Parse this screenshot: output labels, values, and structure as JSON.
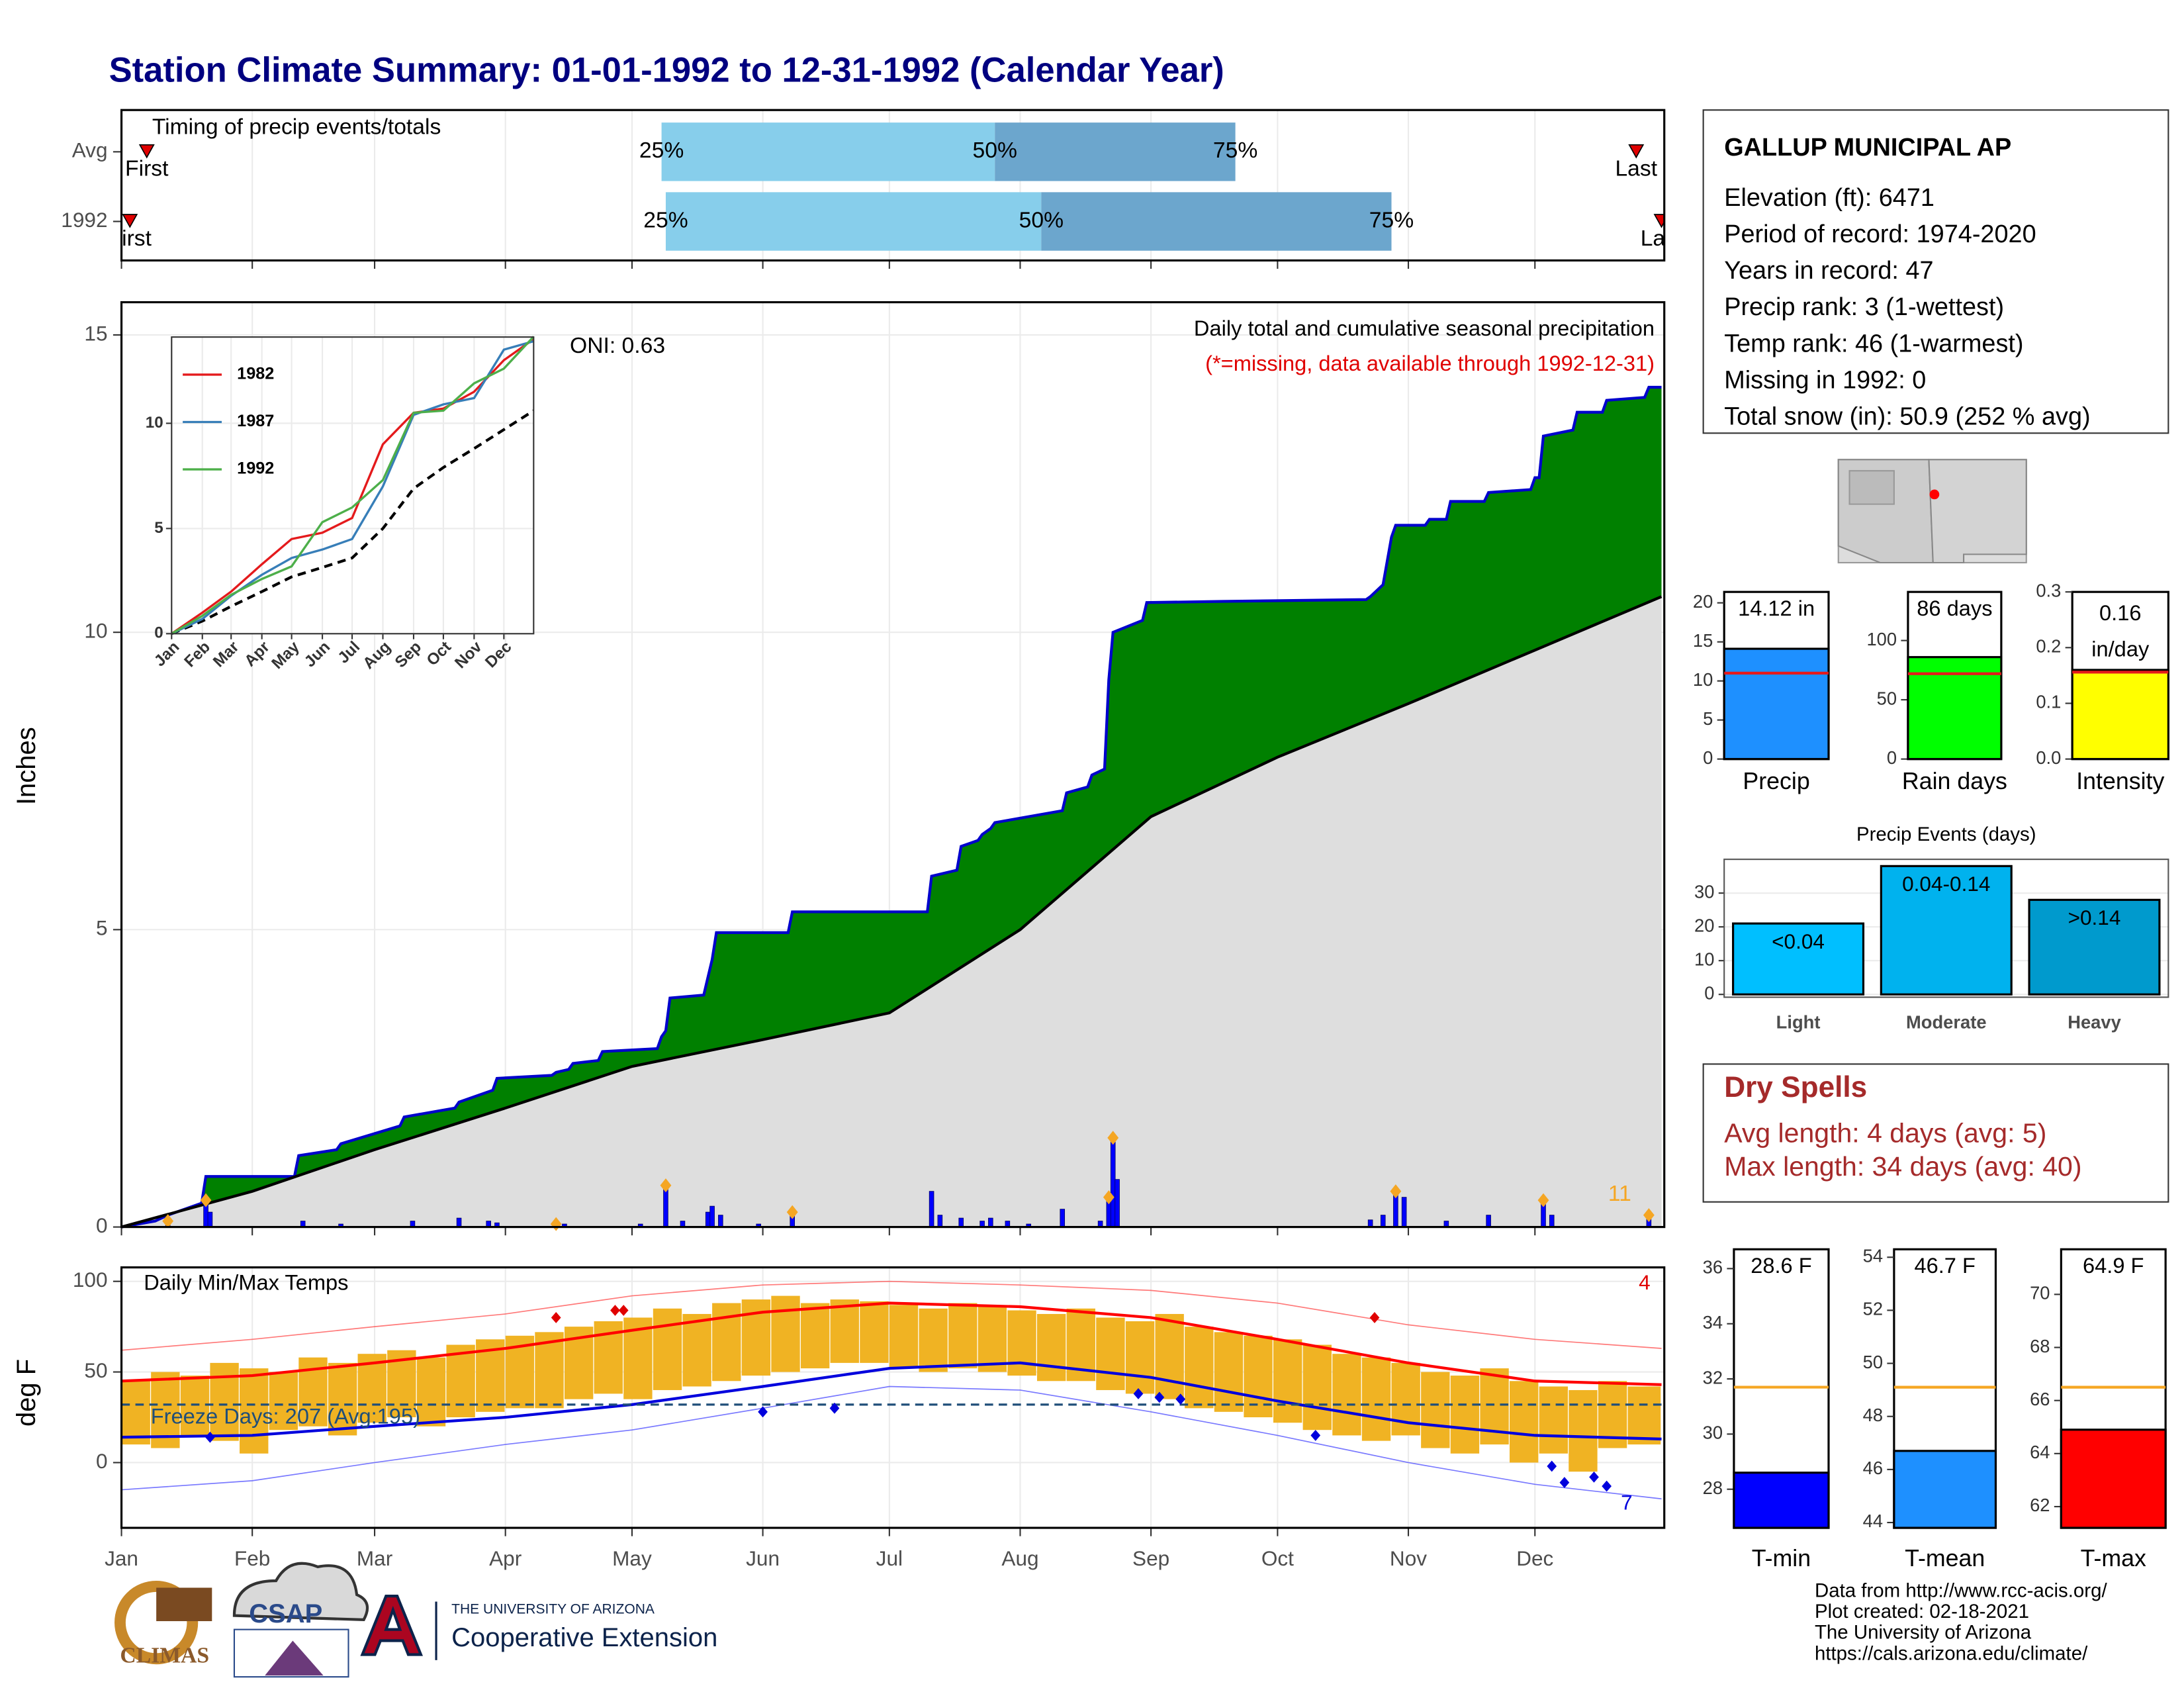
{
  "header": {
    "title": "Station Climate Summary: 01-01-1992 to 12-31-1992 (Calendar Year)"
  },
  "chart_data": [
    {
      "type": "timing",
      "label": "Timing of precip events/totals",
      "rows": [
        "Avg",
        "1992"
      ],
      "first_label": "First",
      "last_label": "Last",
      "quantile_labels": [
        "25%",
        "50%",
        "75%"
      ],
      "xlim": [
        1,
        366
      ],
      "first": [
        7,
        3
      ],
      "last": [
        360,
        366
      ],
      "p25": [
        129,
        130
      ],
      "p50": [
        208,
        219
      ],
      "p75": [
        265,
        302
      ],
      "colors": [
        "#87ceeb",
        "#6ca6cd"
      ]
    },
    {
      "type": "precip",
      "title": "Daily total and cumulative seasonal precipitation",
      "note": "(*=missing, data available through 1992-12-31)",
      "oni": "ONI: 0.63",
      "record_count": 11,
      "y_label": "Inches",
      "xlim": [
        1,
        366
      ],
      "ylim": [
        0,
        15.55
      ],
      "yticks": [
        0,
        5,
        10,
        15
      ],
      "cumulative": {
        "color": "#0000cc",
        "fill": "#008000",
        "x": [
          1,
          9,
          12,
          20,
          21,
          42,
          43,
          52,
          53,
          67,
          68,
          80,
          81,
          89,
          90,
          103,
          104,
          107,
          108,
          114,
          115,
          128,
          129,
          130,
          131,
          139,
          140,
          141,
          142,
          159,
          160,
          192,
          193,
          199,
          200,
          204,
          205,
          207,
          208,
          224,
          225,
          230,
          231,
          234,
          235,
          236,
          243,
          244,
          262,
          296,
          297,
          300,
          302,
          303,
          310,
          311,
          315,
          316,
          324,
          325,
          335,
          336,
          337,
          338,
          345,
          346,
          352,
          353,
          362,
          363,
          366
        ],
        "values": [
          0,
          0.1,
          0.2,
          0.4,
          0.85,
          0.85,
          1.2,
          1.3,
          1.4,
          1.7,
          1.85,
          2.0,
          2.1,
          2.3,
          2.5,
          2.55,
          2.6,
          2.65,
          2.75,
          2.8,
          2.95,
          3.0,
          3.2,
          3.3,
          3.85,
          3.9,
          4.2,
          4.5,
          4.95,
          4.95,
          5.3,
          5.3,
          5.9,
          6.0,
          6.4,
          6.5,
          6.6,
          6.7,
          6.8,
          7.0,
          7.3,
          7.4,
          7.6,
          7.7,
          9.2,
          10.0,
          10.2,
          10.5,
          10.52,
          10.55,
          10.6,
          10.8,
          11.6,
          11.8,
          11.8,
          11.9,
          11.9,
          12.2,
          12.2,
          12.35,
          12.4,
          12.6,
          12.6,
          13.3,
          13.4,
          13.7,
          13.7,
          13.9,
          13.95,
          14.12,
          14.12
        ]
      },
      "normal": {
        "color": "#000000",
        "fill": "#dedede",
        "x": [
          1,
          32,
          61,
          92,
          122,
          153,
          183,
          214,
          245,
          275,
          306,
          336,
          366
        ],
        "values": [
          0,
          0.6,
          1.3,
          2.0,
          2.7,
          3.15,
          3.6,
          5.0,
          6.9,
          7.9,
          8.8,
          9.7,
          10.6
        ]
      },
      "daily": {
        "color": "#0000ff",
        "flag_color": "#f5a623",
        "x": [
          12,
          21,
          22,
          44,
          53,
          70,
          81,
          88,
          90,
          104,
          106,
          124,
          130,
          134,
          140,
          141,
          143,
          152,
          160,
          193,
          195,
          200,
          205,
          207,
          211,
          216,
          224,
          233,
          235,
          236,
          237,
          297,
          300,
          303,
          305,
          315,
          325,
          338,
          340,
          363
        ],
        "values": [
          0.1,
          0.45,
          0.25,
          0.1,
          0.05,
          0.1,
          0.15,
          0.1,
          0.07,
          0.05,
          0.05,
          0.05,
          0.7,
          0.1,
          0.25,
          0.35,
          0.2,
          0.05,
          0.25,
          0.6,
          0.2,
          0.15,
          0.1,
          0.15,
          0.1,
          0.05,
          0.3,
          0.1,
          0.5,
          1.5,
          0.8,
          0.12,
          0.2,
          0.6,
          0.5,
          0.1,
          0.2,
          0.45,
          0.2,
          0.2
        ],
        "flagged": [
          0,
          1,
          9,
          12,
          18,
          28,
          29,
          33,
          37,
          39
        ]
      }
    },
    {
      "type": "line",
      "xlim": [
        1,
        366
      ],
      "ylim": [
        0,
        14.1
      ],
      "yticks": [
        0,
        5,
        10
      ],
      "xticks": [
        {
          "value": 1,
          "label": "Jan"
        },
        {
          "value": 32,
          "label": "Feb"
        },
        {
          "value": 61,
          "label": "Mar"
        },
        {
          "value": 92,
          "label": "Apr"
        },
        {
          "value": 122,
          "label": "May"
        },
        {
          "value": 153,
          "label": "Jun"
        },
        {
          "value": 183,
          "label": "Jul"
        },
        {
          "value": 214,
          "label": "Aug"
        },
        {
          "value": 245,
          "label": "Sep"
        },
        {
          "value": 275,
          "label": "Oct"
        },
        {
          "value": 306,
          "label": "Nov"
        },
        {
          "value": 336,
          "label": "Dec"
        }
      ],
      "x": [
        1,
        32,
        61,
        92,
        122,
        153,
        183,
        214,
        245,
        275,
        306,
        336,
        366
      ],
      "series": [
        {
          "name": "1982",
          "color": "#e41a1c",
          "values": [
            0,
            1.0,
            2.0,
            3.3,
            4.5,
            4.8,
            5.5,
            9.0,
            10.5,
            10.7,
            11.5,
            13.0,
            14.0
          ]
        },
        {
          "name": "1987",
          "color": "#377eb8",
          "values": [
            0,
            0.7,
            1.8,
            2.8,
            3.6,
            4.0,
            4.5,
            7.0,
            10.4,
            10.9,
            11.2,
            13.5,
            13.9
          ]
        },
        {
          "name": "1992",
          "color": "#4daf4a",
          "values": [
            0,
            0.85,
            1.85,
            2.6,
            3.2,
            5.3,
            6.0,
            7.3,
            10.5,
            10.6,
            11.9,
            12.6,
            14.12
          ]
        }
      ],
      "normal": {
        "color": "#000000",
        "values": [
          0,
          0.6,
          1.3,
          2.0,
          2.7,
          3.15,
          3.6,
          5.0,
          6.9,
          7.9,
          8.8,
          9.7,
          10.6
        ]
      }
    },
    {
      "type": "temp",
      "title": "Daily Min/Max Temps",
      "y_label": "deg F",
      "xlim": [
        1,
        366
      ],
      "ylim": [
        -36,
        107.7
      ],
      "yticks": [
        0,
        50,
        100
      ],
      "xticks": [
        {
          "value": 1,
          "label": "Jan"
        },
        {
          "value": 32,
          "label": "Feb"
        },
        {
          "value": 61,
          "label": "Mar"
        },
        {
          "value": 92,
          "label": "Apr"
        },
        {
          "value": 122,
          "label": "May"
        },
        {
          "value": 153,
          "label": "Jun"
        },
        {
          "value": 183,
          "label": "Jul"
        },
        {
          "value": 214,
          "label": "Aug"
        },
        {
          "value": 245,
          "label": "Sep"
        },
        {
          "value": 275,
          "label": "Oct"
        },
        {
          "value": 306,
          "label": "Nov"
        },
        {
          "value": 336,
          "label": "Dec"
        }
      ],
      "freeze_text": "Freeze Days: 207 (Avg:195)",
      "freeze_line": 32,
      "record_high_count": 4,
      "record_low_count": 7,
      "bar_color": "#f0b323",
      "x": [
        1,
        8,
        15,
        22,
        29,
        36,
        43,
        50,
        57,
        64,
        71,
        78,
        85,
        92,
        99,
        106,
        113,
        120,
        127,
        134,
        141,
        148,
        155,
        162,
        169,
        176,
        183,
        190,
        197,
        204,
        211,
        218,
        225,
        232,
        239,
        246,
        253,
        260,
        267,
        274,
        281,
        288,
        295,
        302,
        309,
        316,
        323,
        330,
        337,
        344,
        351,
        358
      ],
      "high": [
        45,
        50,
        48,
        55,
        52,
        50,
        58,
        55,
        60,
        62,
        58,
        65,
        68,
        70,
        72,
        75,
        78,
        80,
        85,
        82,
        88,
        90,
        92,
        88,
        90,
        89,
        87,
        85,
        88,
        86,
        84,
        82,
        85,
        80,
        78,
        82,
        75,
        72,
        70,
        68,
        65,
        60,
        58,
        55,
        50,
        48,
        52,
        45,
        42,
        40,
        45,
        42
      ],
      "low": [
        10,
        8,
        15,
        12,
        5,
        18,
        20,
        15,
        22,
        25,
        20,
        25,
        28,
        30,
        30,
        35,
        38,
        35,
        40,
        42,
        45,
        48,
        50,
        52,
        55,
        55,
        52,
        50,
        52,
        50,
        48,
        45,
        45,
        40,
        38,
        35,
        30,
        28,
        25,
        22,
        18,
        15,
        12,
        15,
        8,
        5,
        10,
        0,
        5,
        -5,
        8,
        10
      ],
      "lines_x": [
        1,
        32,
        61,
        92,
        122,
        153,
        183,
        214,
        245,
        275,
        306,
        336,
        366
      ],
      "normal_high": [
        45,
        48,
        55,
        63,
        73,
        83,
        88,
        86,
        80,
        68,
        55,
        45,
        43
      ],
      "normal_low": [
        14,
        15,
        20,
        25,
        32,
        42,
        52,
        55,
        47,
        34,
        22,
        15,
        13
      ],
      "record_high": [
        62,
        68,
        75,
        82,
        92,
        98,
        100,
        98,
        95,
        88,
        76,
        68,
        63
      ],
      "record_low": [
        -15,
        -10,
        0,
        10,
        18,
        30,
        42,
        40,
        28,
        15,
        0,
        -12,
        -20
      ],
      "record_high_points": {
        "x": [
          104,
          118,
          120,
          298
        ],
        "values": [
          80,
          84,
          84,
          80
        ]
      },
      "record_low_points": {
        "x": [
          22,
          153,
          170,
          242,
          247,
          252,
          284,
          340,
          343,
          350,
          353
        ],
        "values": [
          14,
          28,
          30,
          38,
          36,
          35,
          15,
          -2,
          -11,
          -8,
          -13
        ]
      }
    },
    {
      "type": "bar",
      "categories": [
        "Precip"
      ],
      "values": [
        14.12
      ],
      "value_labels": [
        "14.12 in"
      ],
      "average": 11.0,
      "average_color": "#e41a1c",
      "color": "#1e90ff",
      "ylim": [
        0,
        21.4
      ],
      "yticks": [
        0,
        5,
        10,
        15,
        20
      ]
    },
    {
      "type": "bar",
      "categories": [
        "Rain days"
      ],
      "values": [
        86
      ],
      "value_labels": [
        "86 days"
      ],
      "average": 72,
      "average_color": "#e41a1c",
      "color": "#00ff00",
      "ylim": [
        0,
        141
      ],
      "yticks": [
        0,
        50,
        100
      ]
    },
    {
      "type": "bar",
      "categories": [
        "Intensity"
      ],
      "values": [
        0.16
      ],
      "value_labels": [
        "0.16 in/day"
      ],
      "average": 0.156,
      "average_color": "#e41a1c",
      "color": "#ffff00",
      "ylim": [
        0,
        0.3
      ],
      "yticks": [
        {
          "value": 0,
          "label": "0.0"
        },
        0.1,
        0.2,
        0.3
      ]
    },
    {
      "type": "bar",
      "title": "Precip Events (days)",
      "categories": [
        "Light",
        "Moderate",
        "Heavy"
      ],
      "values": [
        21,
        38,
        28
      ],
      "value_labels": [
        "<0.04",
        "0.04-0.14",
        ">0.14"
      ],
      "colors": [
        "#00bfff",
        "#00b2ee",
        "#009acd"
      ],
      "ylim": [
        0,
        40
      ],
      "yticks": [
        0,
        10,
        20,
        30
      ]
    },
    {
      "type": "bar",
      "categories": [
        "T-min"
      ],
      "values": [
        28.6
      ],
      "value_labels": [
        "28.6 F"
      ],
      "average": 31.7,
      "average_color": "#f5a623",
      "color": "#0000ff",
      "ylim": [
        26.6,
        36.7
      ],
      "yticks": [
        28,
        30,
        32,
        34,
        36
      ]
    },
    {
      "type": "bar",
      "categories": [
        "T-mean"
      ],
      "values": [
        46.7
      ],
      "value_labels": [
        "46.7 F"
      ],
      "average": 49.1,
      "average_color": "#f5a623",
      "color": "#1e90ff",
      "ylim": [
        43.8,
        54.3
      ],
      "yticks": [
        44,
        46,
        48,
        50,
        52,
        54
      ]
    },
    {
      "type": "bar",
      "categories": [
        "T-max"
      ],
      "values": [
        64.9
      ],
      "value_labels": [
        "64.9 F"
      ],
      "average": 66.5,
      "average_color": "#f5a623",
      "color": "#ff0000",
      "ylim": [
        61.2,
        71.7
      ],
      "yticks": [
        62,
        64,
        66,
        68,
        70
      ]
    }
  ],
  "station": {
    "name": "GALLUP MUNICIPAL AP",
    "lines": [
      "Elevation (ft): 6471",
      "Period of record: 1974-2020",
      "Years in record: 47",
      "Precip rank: 3 (1-wettest)",
      "Temp rank: 46 (1-warmest)",
      "Missing in 1992: 0",
      "Total snow (in): 50.9 (252 % avg)"
    ]
  },
  "dry_spells": {
    "title": "Dry Spells",
    "lines": [
      "Avg length: 4 days (avg: 5)",
      "Max length: 34 days (avg: 40)"
    ]
  },
  "footer": {
    "lines": [
      "Data from http://www.rcc-acis.org/",
      "Plot created: 02-18-2021",
      "The University of Arizona",
      "https://cals.arizona.edu/climate/"
    ],
    "logos": [
      "CLIMAS",
      "CSAP",
      "THE UNIVERSITY OF ARIZONA",
      "Cooperative Extension"
    ]
  }
}
